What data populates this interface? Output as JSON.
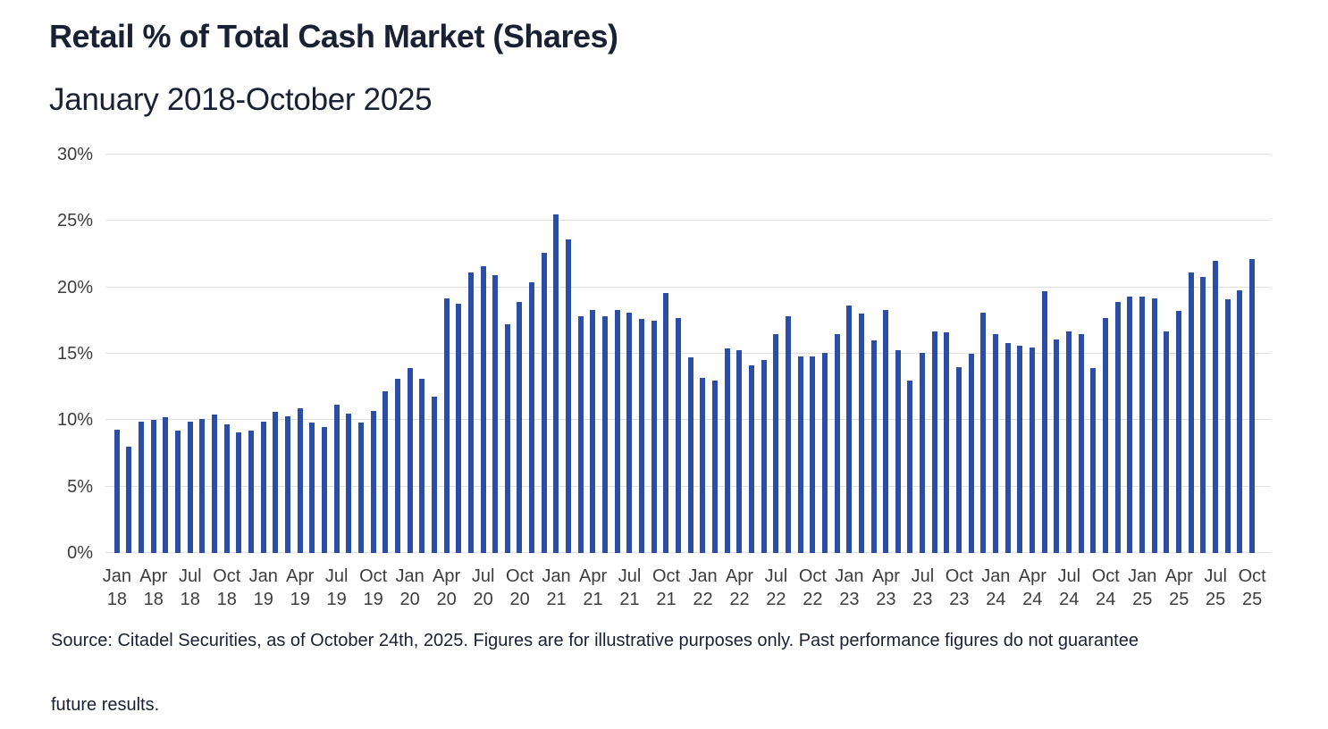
{
  "header": {
    "title": "Retail % of Total Cash Market (Shares)",
    "subtitle": "January 2018-October 2025"
  },
  "footer": {
    "source_lines": [
      "Source: Citadel Securities, as of October 24th, 2025. Figures are for illustrative purposes only. Past performance figures do not guarantee",
      "future results."
    ]
  },
  "chart_data": {
    "type": "bar",
    "title": "Retail % of Total Cash Market (Shares)",
    "subtitle": "January 2018-October 2025",
    "xlabel": "",
    "ylabel": "",
    "ylim": [
      0,
      30
    ],
    "yticks": [
      0,
      5,
      10,
      15,
      20,
      25,
      30
    ],
    "ytick_labels": [
      "0%",
      "5%",
      "10%",
      "15%",
      "20%",
      "25%",
      "30%"
    ],
    "grid": "horizontal",
    "legend": "none",
    "bar_color": "#2b4da5",
    "grid_color": "#e0e0e0",
    "axis_label_color": "#3d3d3d",
    "categories": [
      "Jan 2018",
      "Feb 2018",
      "Mar 2018",
      "Apr 2018",
      "May 2018",
      "Jun 2018",
      "Jul 2018",
      "Aug 2018",
      "Sep 2018",
      "Oct 2018",
      "Nov 2018",
      "Dec 2018",
      "Jan 2019",
      "Feb 2019",
      "Mar 2019",
      "Apr 2019",
      "May 2019",
      "Jun 2019",
      "Jul 2019",
      "Aug 2019",
      "Sep 2019",
      "Oct 2019",
      "Nov 2019",
      "Dec 2019",
      "Jan 2020",
      "Feb 2020",
      "Mar 2020",
      "Apr 2020",
      "May 2020",
      "Jun 2020",
      "Jul 2020",
      "Aug 2020",
      "Sep 2020",
      "Oct 2020",
      "Nov 2020",
      "Dec 2020",
      "Jan 2021",
      "Feb 2021",
      "Mar 2021",
      "Apr 2021",
      "May 2021",
      "Jun 2021",
      "Jul 2021",
      "Aug 2021",
      "Sep 2021",
      "Oct 2021",
      "Nov 2021",
      "Dec 2021",
      "Jan 2022",
      "Feb 2022",
      "Mar 2022",
      "Apr 2022",
      "May 2022",
      "Jun 2022",
      "Jul 2022",
      "Aug 2022",
      "Sep 2022",
      "Oct 2022",
      "Nov 2022",
      "Dec 2022",
      "Jan 2023",
      "Feb 2023",
      "Mar 2023",
      "Apr 2023",
      "May 2023",
      "Jun 2023",
      "Jul 2023",
      "Aug 2023",
      "Sep 2023",
      "Oct 2023",
      "Nov 2023",
      "Dec 2023",
      "Jan 2024",
      "Feb 2024",
      "Mar 2024",
      "Apr 2024",
      "May 2024",
      "Jun 2024",
      "Jul 2024",
      "Aug 2024",
      "Sep 2024",
      "Oct 2024",
      "Nov 2024",
      "Dec 2024",
      "Jan 2025",
      "Feb 2025",
      "Mar 2025",
      "Apr 2025",
      "May 2025",
      "Jun 2025",
      "Jul 2025",
      "Aug 2025",
      "Sep 2025",
      "Oct 2025"
    ],
    "values": [
      9.3,
      8.0,
      9.9,
      10.0,
      10.2,
      9.2,
      9.9,
      10.1,
      10.4,
      9.7,
      9.1,
      9.2,
      9.9,
      10.6,
      10.3,
      10.9,
      9.8,
      9.5,
      11.2,
      10.5,
      9.8,
      10.7,
      12.2,
      13.1,
      13.9,
      13.1,
      11.8,
      19.2,
      18.8,
      21.1,
      21.6,
      20.9,
      17.2,
      18.9,
      20.4,
      22.6,
      25.5,
      23.6,
      17.8,
      18.3,
      17.8,
      18.3,
      18.1,
      17.6,
      17.5,
      19.6,
      17.7,
      14.7,
      13.2,
      13.0,
      15.4,
      15.3,
      14.1,
      14.5,
      16.5,
      17.8,
      14.8,
      14.8,
      15.1,
      16.5,
      18.6,
      18.0,
      16.0,
      18.3,
      15.3,
      13.0,
      15.1,
      16.7,
      16.6,
      14.0,
      15.0,
      18.1,
      16.5,
      15.8,
      15.6,
      15.5,
      19.7,
      16.1,
      16.7,
      16.5,
      13.9,
      17.7,
      18.9,
      19.3,
      19.3,
      19.2,
      16.7,
      18.2,
      21.1,
      20.8,
      22.0,
      19.1,
      19.8,
      22.1
    ],
    "xtick_every": 3,
    "xticks": [
      [
        "Jan",
        "18"
      ],
      [
        "Apr",
        "18"
      ],
      [
        "Jul",
        "18"
      ],
      [
        "Oct",
        "18"
      ],
      [
        "Jan",
        "19"
      ],
      [
        "Apr",
        "19"
      ],
      [
        "Jul",
        "19"
      ],
      [
        "Oct",
        "19"
      ],
      [
        "Jan",
        "20"
      ],
      [
        "Apr",
        "20"
      ],
      [
        "Jul",
        "20"
      ],
      [
        "Oct",
        "20"
      ],
      [
        "Jan",
        "21"
      ],
      [
        "Apr",
        "21"
      ],
      [
        "Jul",
        "21"
      ],
      [
        "Oct",
        "21"
      ],
      [
        "Jan",
        "22"
      ],
      [
        "Apr",
        "22"
      ],
      [
        "Jul",
        "22"
      ],
      [
        "Oct",
        "22"
      ],
      [
        "Jan",
        "23"
      ],
      [
        "Apr",
        "23"
      ],
      [
        "Jul",
        "23"
      ],
      [
        "Oct",
        "23"
      ],
      [
        "Jan",
        "24"
      ],
      [
        "Apr",
        "24"
      ],
      [
        "Jul",
        "24"
      ],
      [
        "Oct",
        "24"
      ],
      [
        "Jan",
        "25"
      ],
      [
        "Apr",
        "25"
      ],
      [
        "Jul",
        "25"
      ],
      [
        "Oct",
        "25"
      ]
    ]
  }
}
